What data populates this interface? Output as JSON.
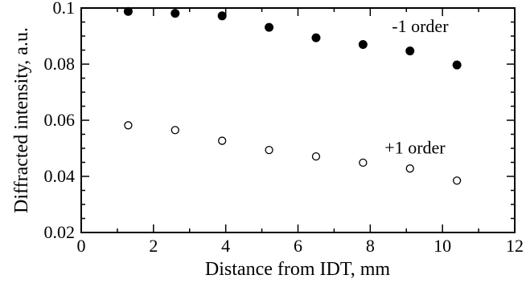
{
  "chart_data": {
    "type": "scatter",
    "xlabel": "Distance from IDT, mm",
    "ylabel": "Diffracted intensity, a.u.",
    "xlim": [
      0,
      12
    ],
    "ylim": [
      0.02,
      0.1
    ],
    "x_ticks": [
      0,
      2,
      4,
      6,
      8,
      10,
      12
    ],
    "x_tick_labels": [
      "0",
      "2",
      "4",
      "6",
      "8",
      "10",
      "12"
    ],
    "y_ticks": [
      0.02,
      0.04,
      0.06,
      0.08,
      0.1
    ],
    "y_tick_labels": [
      "0.02",
      "0.04",
      "0.06",
      "0.08",
      "0.1"
    ],
    "grid": false,
    "series": [
      {
        "name": "-1 order",
        "marker": "filled-circle",
        "color": "#000000",
        "points": [
          {
            "x": 1.3,
            "y": 0.0988
          },
          {
            "x": 2.6,
            "y": 0.0981
          },
          {
            "x": 3.9,
            "y": 0.0972
          },
          {
            "x": 5.2,
            "y": 0.0931
          },
          {
            "x": 6.5,
            "y": 0.0894
          },
          {
            "x": 7.8,
            "y": 0.087
          },
          {
            "x": 9.1,
            "y": 0.0847
          },
          {
            "x": 10.4,
            "y": 0.0797
          }
        ]
      },
      {
        "name": "+1 order",
        "marker": "open-circle",
        "color": "#000000",
        "points": [
          {
            "x": 1.3,
            "y": 0.0582
          },
          {
            "x": 2.6,
            "y": 0.0565
          },
          {
            "x": 3.9,
            "y": 0.0527
          },
          {
            "x": 5.2,
            "y": 0.0494
          },
          {
            "x": 6.5,
            "y": 0.0471
          },
          {
            "x": 7.8,
            "y": 0.0449
          },
          {
            "x": 9.1,
            "y": 0.0428
          },
          {
            "x": 10.4,
            "y": 0.0385
          }
        ]
      }
    ],
    "annotations": [
      {
        "text": "-1 order",
        "x": 8.6,
        "y": 0.0915
      },
      {
        "text": "+1 order",
        "x": 8.4,
        "y": 0.0482
      }
    ]
  }
}
